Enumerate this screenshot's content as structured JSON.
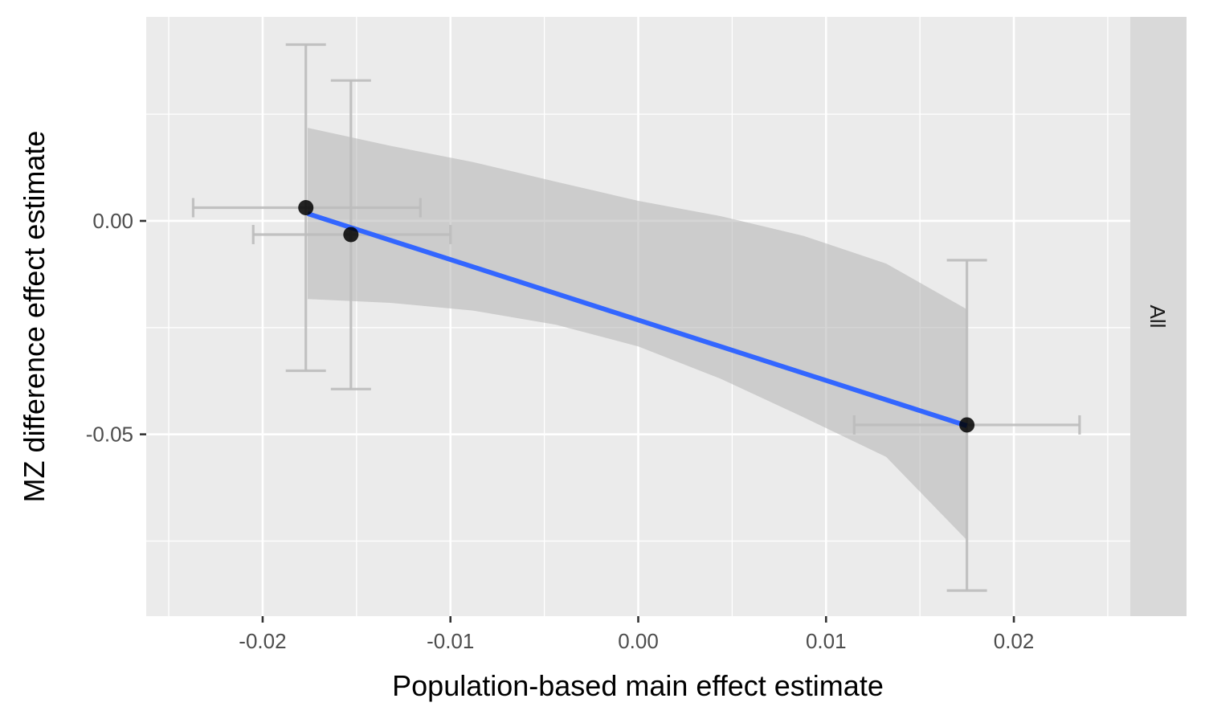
{
  "chart_data": {
    "type": "scatter",
    "title": "",
    "xlabel": "Population-based main effect estimate",
    "ylabel": "MZ difference effect estimate",
    "facet_label": "All",
    "xlim": [
      -0.0262,
      0.0262
    ],
    "ylim": [
      -0.0926,
      0.0478
    ],
    "x_ticks": [
      -0.02,
      -0.01,
      0.0,
      0.01,
      0.02
    ],
    "x_tick_labels": [
      "-0.02",
      "-0.01",
      "0.00",
      "0.01",
      "0.02"
    ],
    "y_ticks": [
      0.0,
      -0.05
    ],
    "y_tick_labels": [
      "0.00",
      "-0.05"
    ],
    "grid": true,
    "points": [
      {
        "x": -0.0177,
        "y": 0.0031,
        "x_lo": -0.0237,
        "x_hi": -0.0116,
        "y_lo": -0.0351,
        "y_hi": 0.0413
      },
      {
        "x": -0.0153,
        "y": -0.0032,
        "x_lo": -0.0205,
        "x_hi": -0.01,
        "y_lo": -0.0394,
        "y_hi": 0.0329
      },
      {
        "x": 0.0175,
        "y": -0.0478,
        "x_lo": 0.0115,
        "x_hi": 0.0235,
        "y_lo": -0.0866,
        "y_hi": -0.0092
      }
    ],
    "fit_line": {
      "x": [
        -0.0176,
        0.0175
      ],
      "y": [
        0.0017,
        -0.048
      ]
    },
    "confidence_band": {
      "x": [
        -0.0176,
        -0.0132,
        -0.0088,
        -0.0044,
        0.0,
        0.0044,
        0.0088,
        0.0132,
        0.0175
      ],
      "y_lower": [
        -0.0183,
        -0.0192,
        -0.021,
        -0.0243,
        -0.0294,
        -0.037,
        -0.046,
        -0.0553,
        -0.0748
      ],
      "y_upper": [
        0.0218,
        0.0176,
        0.0138,
        0.0092,
        0.0047,
        0.0011,
        -0.0035,
        -0.01,
        -0.0207
      ]
    },
    "colors": {
      "panel_bg": "#ebebeb",
      "grid": "#ffffff",
      "strip_bg": "#d9d9d9",
      "band": "#b3b3b3",
      "fit_line": "#3366ff",
      "error_bar": "#bdbdbd",
      "point": "#000000"
    }
  }
}
